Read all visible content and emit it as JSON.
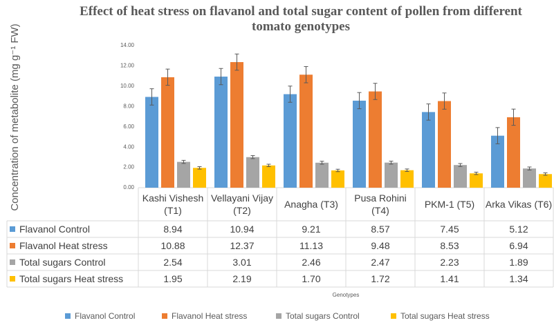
{
  "chart_data": {
    "type": "bar",
    "title": "Effect of heat stress on flavanol and total sugar content of pollen from different tomato genotypes",
    "y_label": "Concentration of metabolite (mg g⁻¹ FW)",
    "x_label": "Genotypes",
    "categories": [
      "Kashi Vishesh (T1)",
      "Vellayani Vijay (T2)",
      "Anagha (T3)",
      "Pusa Rohini (T4)",
      "PKM-1 (T5)",
      "Arka Vikas (T6)"
    ],
    "series": [
      {
        "name": "Flavanol Control",
        "color": "#5b9bd5",
        "values": [
          8.94,
          10.94,
          9.21,
          8.57,
          7.45,
          5.12
        ],
        "value_labels": [
          "8.94",
          "10.94",
          "9.21",
          "8.57",
          "7.45",
          "5.12"
        ],
        "errors": [
          0.8,
          0.8,
          0.8,
          0.8,
          0.8,
          0.8
        ]
      },
      {
        "name": "Flavanol Heat stress",
        "color": "#ed7d31",
        "values": [
          10.88,
          12.37,
          11.13,
          9.48,
          8.53,
          6.94
        ],
        "value_labels": [
          "10.88",
          "12.37",
          "11.13",
          "9.48",
          "8.53",
          "6.94"
        ],
        "errors": [
          0.8,
          0.8,
          0.8,
          0.8,
          0.8,
          0.8
        ]
      },
      {
        "name": "Total sugars Control",
        "color": "#a5a5a5",
        "values": [
          2.54,
          3.01,
          2.46,
          2.47,
          2.23,
          1.89
        ],
        "value_labels": [
          "2.54",
          "3.01",
          "2.46",
          "2.47",
          "2.23",
          "1.89"
        ],
        "errors": [
          0.15,
          0.15,
          0.15,
          0.15,
          0.15,
          0.15
        ]
      },
      {
        "name": "Total sugars Heat stress",
        "color": "#ffc000",
        "values": [
          1.95,
          2.19,
          1.7,
          1.72,
          1.41,
          1.34
        ],
        "value_labels": [
          "1.95",
          "2.19",
          "1.70",
          "1.72",
          "1.41",
          "1.34"
        ],
        "errors": [
          0.12,
          0.12,
          0.12,
          0.12,
          0.12,
          0.12
        ]
      }
    ],
    "ylim": [
      0,
      14
    ],
    "yticks": [
      {
        "value": 0,
        "label": "0.00"
      },
      {
        "value": 2,
        "label": "2.00"
      },
      {
        "value": 4,
        "label": "4.00"
      },
      {
        "value": 6,
        "label": "6.00"
      },
      {
        "value": 8,
        "label": "8.00"
      },
      {
        "value": 10,
        "label": "10.00"
      },
      {
        "value": 12,
        "label": "12.00"
      },
      {
        "value": 14,
        "label": "14.00"
      }
    ],
    "grid": false
  }
}
